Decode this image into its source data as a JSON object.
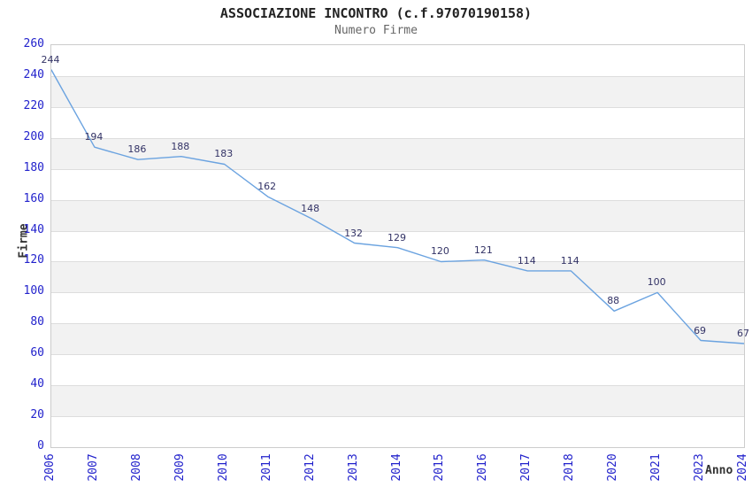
{
  "chart_data": {
    "type": "line",
    "title": "ASSOCIAZIONE INCONTRO (c.f.97070190158)",
    "subtitle": "Numero Firme",
    "xlabel": "Anno",
    "ylabel": "Firme",
    "categories": [
      "2006",
      "2007",
      "2008",
      "2009",
      "2010",
      "2011",
      "2012",
      "2013",
      "2014",
      "2015",
      "2016",
      "2017",
      "2018",
      "2020",
      "2021",
      "2023",
      "2024"
    ],
    "values": [
      244,
      194,
      186,
      188,
      183,
      162,
      148,
      132,
      129,
      120,
      121,
      114,
      114,
      88,
      100,
      69,
      67
    ],
    "ylim": [
      0,
      260
    ],
    "ytick_step": 20,
    "grid": "horizontal-alternating-bands",
    "legend": "none",
    "colors": {
      "line": "#6BA3E0",
      "data_label": "#333366",
      "tick_label": "#2222CC",
      "band_fill": "#F2F2F2",
      "grid_line": "#DDDDDD",
      "plot_border": "#CCCCCC",
      "title": "#222222",
      "subtitle": "#666666",
      "axis_name": "#333333"
    }
  }
}
